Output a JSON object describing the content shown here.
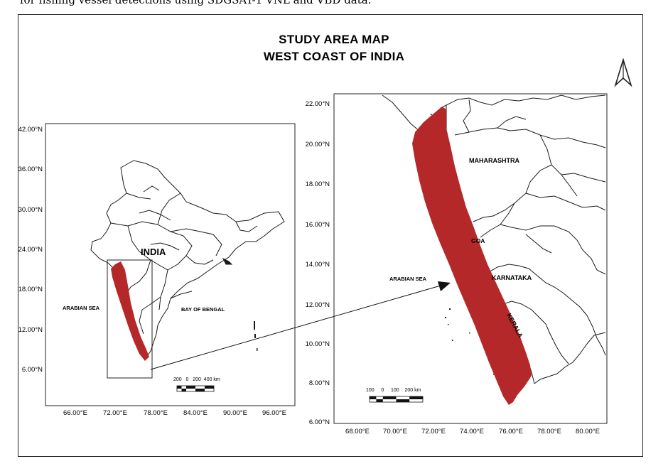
{
  "caption": "for fishing vessel detections using SDGSAT-1 VNL and VBD data.",
  "title": {
    "line1": "STUDY AREA MAP",
    "line2": "WEST COAST OF INDIA"
  },
  "left_map": {
    "lat_ticks": [
      "42.00°N",
      "36.00°N",
      "30.00°N",
      "24.00°N",
      "18.00°N",
      "12.00°N",
      "6.00°N"
    ],
    "lon_ticks": [
      "66.00°E",
      "72.00°E",
      "78.00°E",
      "84.00°E",
      "90.00°E",
      "96.00°E"
    ],
    "labels": {
      "country": "INDIA",
      "sea_west": "ARABIAN SEA",
      "sea_east": "BAY OF BENGAL"
    },
    "scalebar_text": "200   0   200  400 km"
  },
  "right_map": {
    "lat_ticks": [
      "22.00°N",
      "20.00°N",
      "18.00°N",
      "16.00°N",
      "14.00°N",
      "12.00°N",
      "10.00°N",
      "8.00°N",
      "6.00°N"
    ],
    "lon_ticks": [
      "68.00°E",
      "70.00°E",
      "72.00°E",
      "74.00°E",
      "76.00°E",
      "78.00°E",
      "80.00°E"
    ],
    "labels": {
      "maharashtra": "MAHARASHTRA",
      "goa": "GOA",
      "karnataka": "KARNATAKA",
      "kerala": "KERALA",
      "sea": "ARABIAN SEA"
    },
    "scalebar_text": "100     0     100    200 km"
  },
  "colors": {
    "study_area": "#b5282a",
    "boundary": "#1a1a1a"
  },
  "icons": {
    "north_arrow": "north-arrow-icon"
  }
}
